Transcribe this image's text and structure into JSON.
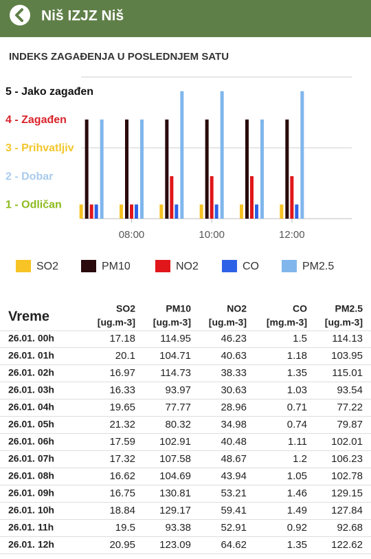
{
  "header": {
    "title": "Niš IZJZ Niš"
  },
  "chart_data": {
    "type": "bar",
    "title": "INDEKS ZAGAĐENJA U POSLEDNJEM SATU",
    "categories": [
      null,
      "08:00",
      null,
      "10:00",
      null,
      "12:00"
    ],
    "series": [
      {
        "name": "SO2",
        "color": "#f7c325",
        "values": [
          1,
          1,
          1,
          1,
          1,
          1
        ]
      },
      {
        "name": "PM10",
        "color": "#2a0a0c",
        "values": [
          4,
          4,
          4,
          4,
          4,
          4
        ]
      },
      {
        "name": "NO2",
        "color": "#e0161a",
        "values": [
          1,
          1,
          2,
          2,
          2,
          2
        ]
      },
      {
        "name": "CO",
        "color": "#2e62e6",
        "values": [
          1,
          1,
          1,
          1,
          1,
          1
        ]
      },
      {
        "name": "PM2.5",
        "color": "#80b6ec",
        "values": [
          4,
          4,
          5,
          5,
          4,
          5
        ]
      }
    ],
    "ylim": [
      0.5,
      5.5
    ],
    "yticks": [
      {
        "value": 1,
        "label": "1 - Odličan"
      },
      {
        "value": 2,
        "label": "2 - Dobar"
      },
      {
        "value": 3,
        "label": "3 - Prihvatljiv"
      },
      {
        "value": 4,
        "label": "4 - Zagađen"
      },
      {
        "value": 5,
        "label": "5 - Jako zagađen"
      }
    ],
    "ytick_colors": [
      "#8dbb1e",
      "#a9cbec",
      "#f2c62a",
      "#d9232a",
      "#111111"
    ],
    "gridlines": [
      3
    ]
  },
  "table": {
    "header": "Vreme",
    "columns": [
      {
        "name": "SO2",
        "unit": "[ug.m-3]"
      },
      {
        "name": "PM10",
        "unit": "[ug.m-3]"
      },
      {
        "name": "NO2",
        "unit": "[ug.m-3]"
      },
      {
        "name": "CO",
        "unit": "[mg.m-3]"
      },
      {
        "name": "PM2.5",
        "unit": "[ug.m-3]"
      }
    ],
    "rows": [
      [
        "26.01. 00h",
        17.18,
        114.95,
        46.23,
        1.5,
        114.13
      ],
      [
        "26.01. 01h",
        20.1,
        104.71,
        40.63,
        1.18,
        103.95
      ],
      [
        "26.01. 02h",
        16.97,
        114.73,
        38.33,
        1.35,
        115.01
      ],
      [
        "26.01. 03h",
        16.33,
        93.97,
        30.63,
        1.03,
        93.54
      ],
      [
        "26.01. 04h",
        19.65,
        77.77,
        28.96,
        0.71,
        77.22
      ],
      [
        "26.01. 05h",
        21.32,
        80.32,
        34.98,
        0.74,
        79.87
      ],
      [
        "26.01. 06h",
        17.59,
        102.91,
        40.48,
        1.11,
        102.01
      ],
      [
        "26.01. 07h",
        17.32,
        107.58,
        48.67,
        1.2,
        106.23
      ],
      [
        "26.01. 08h",
        16.62,
        104.69,
        43.94,
        1.05,
        102.78
      ],
      [
        "26.01. 09h",
        16.75,
        130.81,
        53.21,
        1.46,
        129.15
      ],
      [
        "26.01. 10h",
        18.84,
        129.17,
        59.41,
        1.49,
        127.84
      ],
      [
        "26.01. 11h",
        19.5,
        93.38,
        52.91,
        0.92,
        92.68
      ],
      [
        "26.01. 12h",
        20.95,
        123.09,
        64.62,
        1.35,
        122.62
      ]
    ]
  }
}
